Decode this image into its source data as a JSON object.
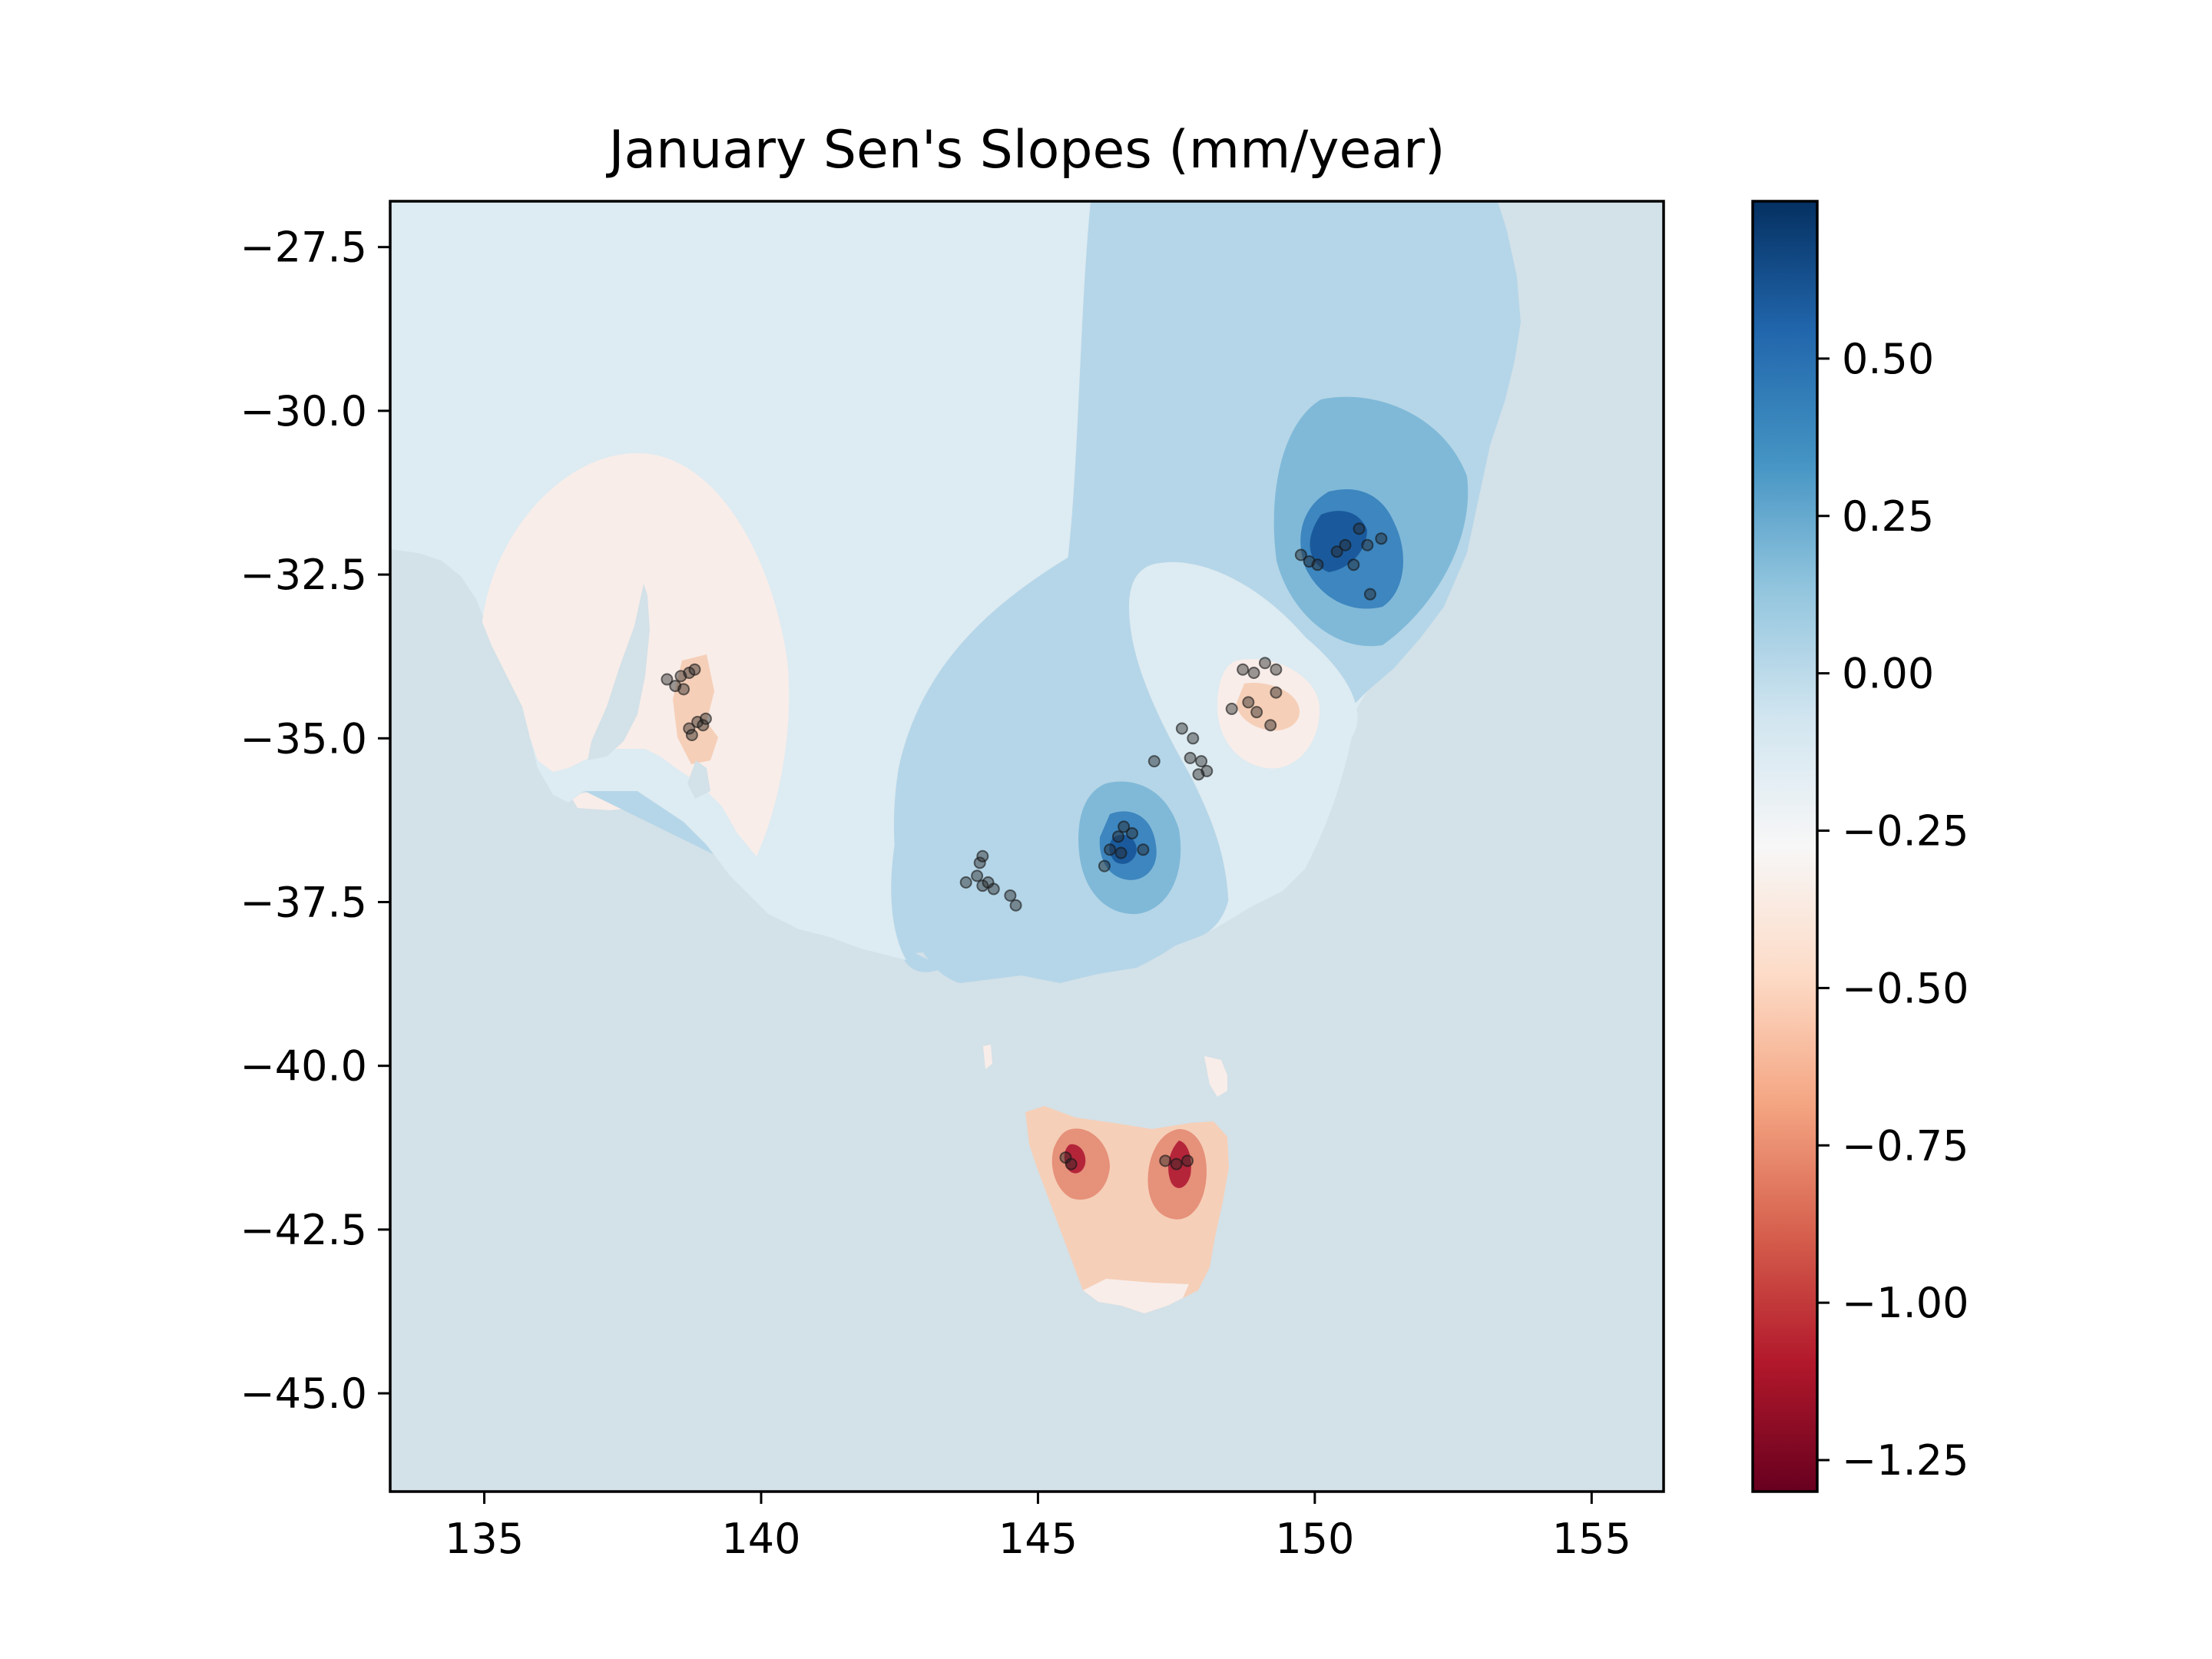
{
  "chart_data": {
    "type": "heatmap",
    "title": "January Sen's Slopes (mm/year)",
    "xlabel": "",
    "ylabel": "",
    "xlim": [
      133.3,
      156.3
    ],
    "ylim": [
      -46.5,
      -26.8
    ],
    "x_ticks": [
      135,
      140,
      145,
      150,
      155
    ],
    "y_ticks": [
      -27.5,
      -30.0,
      -32.5,
      -35.0,
      -37.5,
      -40.0,
      -42.5,
      -45.0
    ],
    "x_tick_labels": [
      "135",
      "140",
      "145",
      "150",
      "155"
    ],
    "y_tick_labels": [
      "−27.5",
      "−30.0",
      "−32.5",
      "−35.0",
      "−37.5",
      "−40.0",
      "−42.5",
      "−45.0"
    ],
    "colorbar": {
      "colormap": "RdBu",
      "range": [
        -1.3,
        0.75
      ],
      "ticks": [
        0.5,
        0.25,
        0.0,
        -0.25,
        -0.5,
        -0.75,
        -1.0,
        -1.25
      ],
      "tick_labels": [
        "0.50",
        "0.25",
        "0.00",
        "−0.25",
        "−0.50",
        "−0.75",
        "−1.00",
        "−1.25"
      ],
      "stops": [
        "#67001f",
        "#b2182b",
        "#d6604d",
        "#f4a582",
        "#fddbc7",
        "#f7f7f7",
        "#d1e5f0",
        "#92c5de",
        "#4393c3",
        "#2166ac",
        "#053061"
      ]
    },
    "colors": {
      "ocean": "#d3e1e8",
      "light_blue": "#ddebf2",
      "mid_blue": "#b5d6e8",
      "blue": "#80b9d8",
      "strong_blue": "#3d86bf",
      "dark_blue": "#1a5a9c",
      "pale_red": "#f8ede9",
      "light_red": "#f6cfb8",
      "red": "#e6917a",
      "dark_red": "#b5253a"
    },
    "stations": [
      [
        138.3,
        -34.1
      ],
      [
        138.45,
        -34.2
      ],
      [
        138.55,
        -34.05
      ],
      [
        138.7,
        -34.0
      ],
      [
        138.6,
        -34.25
      ],
      [
        138.8,
        -33.95
      ],
      [
        138.7,
        -34.85
      ],
      [
        138.85,
        -34.75
      ],
      [
        138.95,
        -34.8
      ],
      [
        139.0,
        -34.7
      ],
      [
        138.75,
        -34.95
      ],
      [
        143.7,
        -37.2
      ],
      [
        143.9,
        -37.1
      ],
      [
        144.0,
        -37.25
      ],
      [
        144.1,
        -37.2
      ],
      [
        144.2,
        -37.3
      ],
      [
        143.95,
        -36.9
      ],
      [
        144.0,
        -36.8
      ],
      [
        144.5,
        -37.4
      ],
      [
        144.6,
        -37.55
      ],
      [
        146.3,
        -36.7
      ],
      [
        146.45,
        -36.5
      ],
      [
        146.55,
        -36.35
      ],
      [
        146.7,
        -36.45
      ],
      [
        146.2,
        -36.95
      ],
      [
        146.5,
        -36.75
      ],
      [
        146.9,
        -36.7
      ],
      [
        147.1,
        -35.35
      ],
      [
        147.6,
        -34.85
      ],
      [
        147.8,
        -35.0
      ],
      [
        147.75,
        -35.3
      ],
      [
        147.95,
        -35.35
      ],
      [
        148.05,
        -35.5
      ],
      [
        147.9,
        -35.55
      ],
      [
        148.5,
        -34.55
      ],
      [
        148.7,
        -33.95
      ],
      [
        148.9,
        -34.0
      ],
      [
        149.1,
        -33.85
      ],
      [
        149.3,
        -33.95
      ],
      [
        148.8,
        -34.45
      ],
      [
        148.95,
        -34.6
      ],
      [
        149.3,
        -34.3
      ],
      [
        149.2,
        -34.8
      ],
      [
        149.75,
        -32.2
      ],
      [
        149.9,
        -32.3
      ],
      [
        150.05,
        -32.35
      ],
      [
        150.4,
        -32.15
      ],
      [
        150.55,
        -32.05
      ],
      [
        150.8,
        -31.8
      ],
      [
        150.95,
        -32.05
      ],
      [
        151.2,
        -31.95
      ],
      [
        150.7,
        -32.35
      ],
      [
        151.0,
        -32.8
      ],
      [
        145.5,
        -41.4
      ],
      [
        145.6,
        -41.5
      ],
      [
        147.3,
        -41.45
      ],
      [
        147.5,
        -41.5
      ],
      [
        147.7,
        -41.45
      ]
    ]
  }
}
